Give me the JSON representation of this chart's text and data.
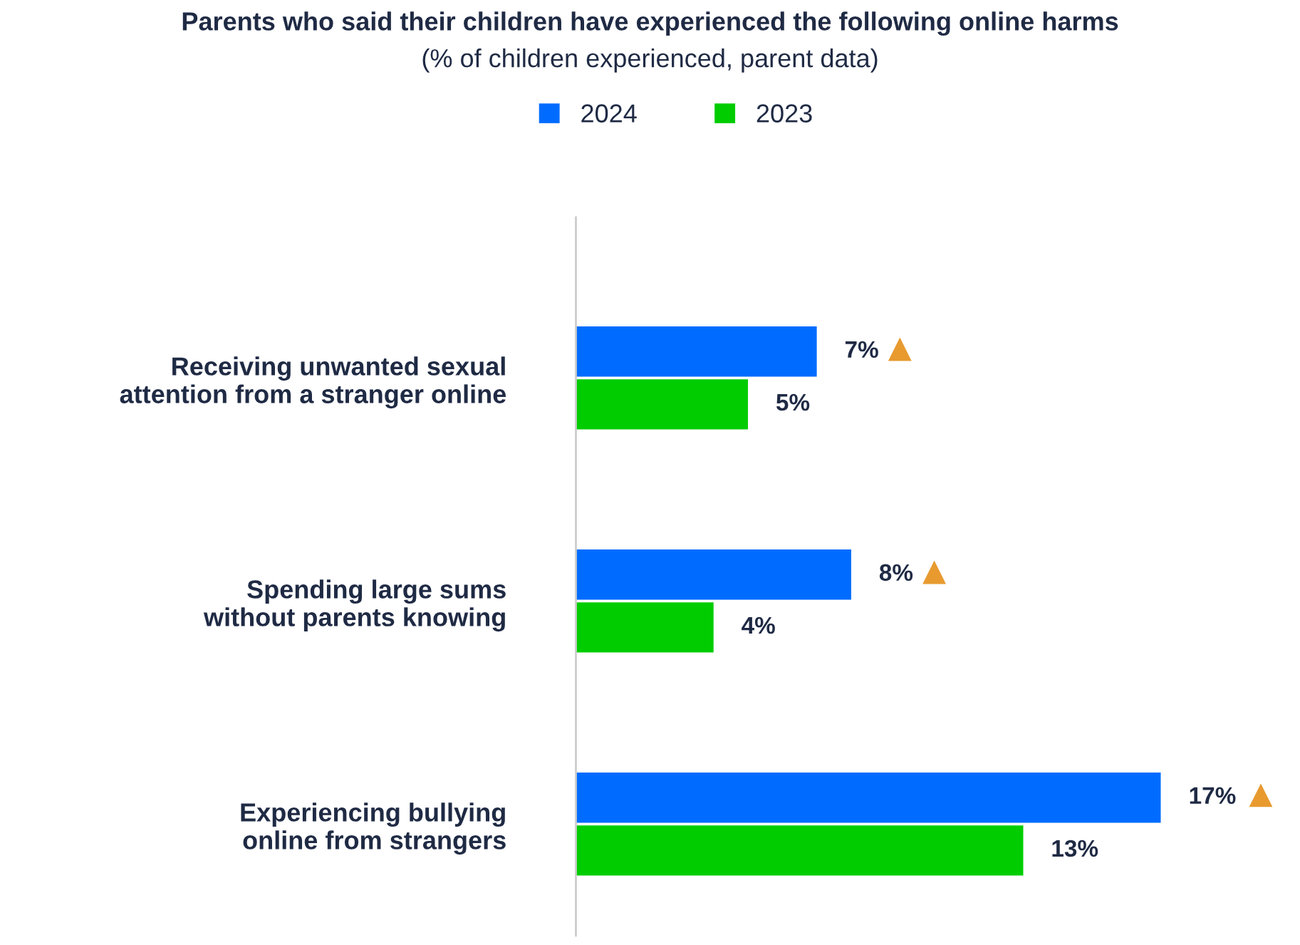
{
  "chart_data": {
    "type": "bar",
    "orientation": "horizontal",
    "title": "Parents who said their children have experienced the following online harms",
    "subtitle": "(% of children experienced, parent data)",
    "categories": [
      "Receiving unwanted sexual attention from a stranger online",
      "Spending large sums without parents knowing",
      "Experiencing bullying online from strangers"
    ],
    "series": [
      {
        "name": "2024",
        "color": "#006cff",
        "values": [
          7,
          8,
          17
        ],
        "value_labels": [
          "7%",
          "8%",
          "17%"
        ]
      },
      {
        "name": "2023",
        "color": "#00cc00",
        "values": [
          5,
          4,
          13
        ],
        "value_labels": [
          "5%",
          "4%",
          "13%"
        ]
      }
    ],
    "legend": "top",
    "grid": false,
    "tick_labels": "y"
  }
}
